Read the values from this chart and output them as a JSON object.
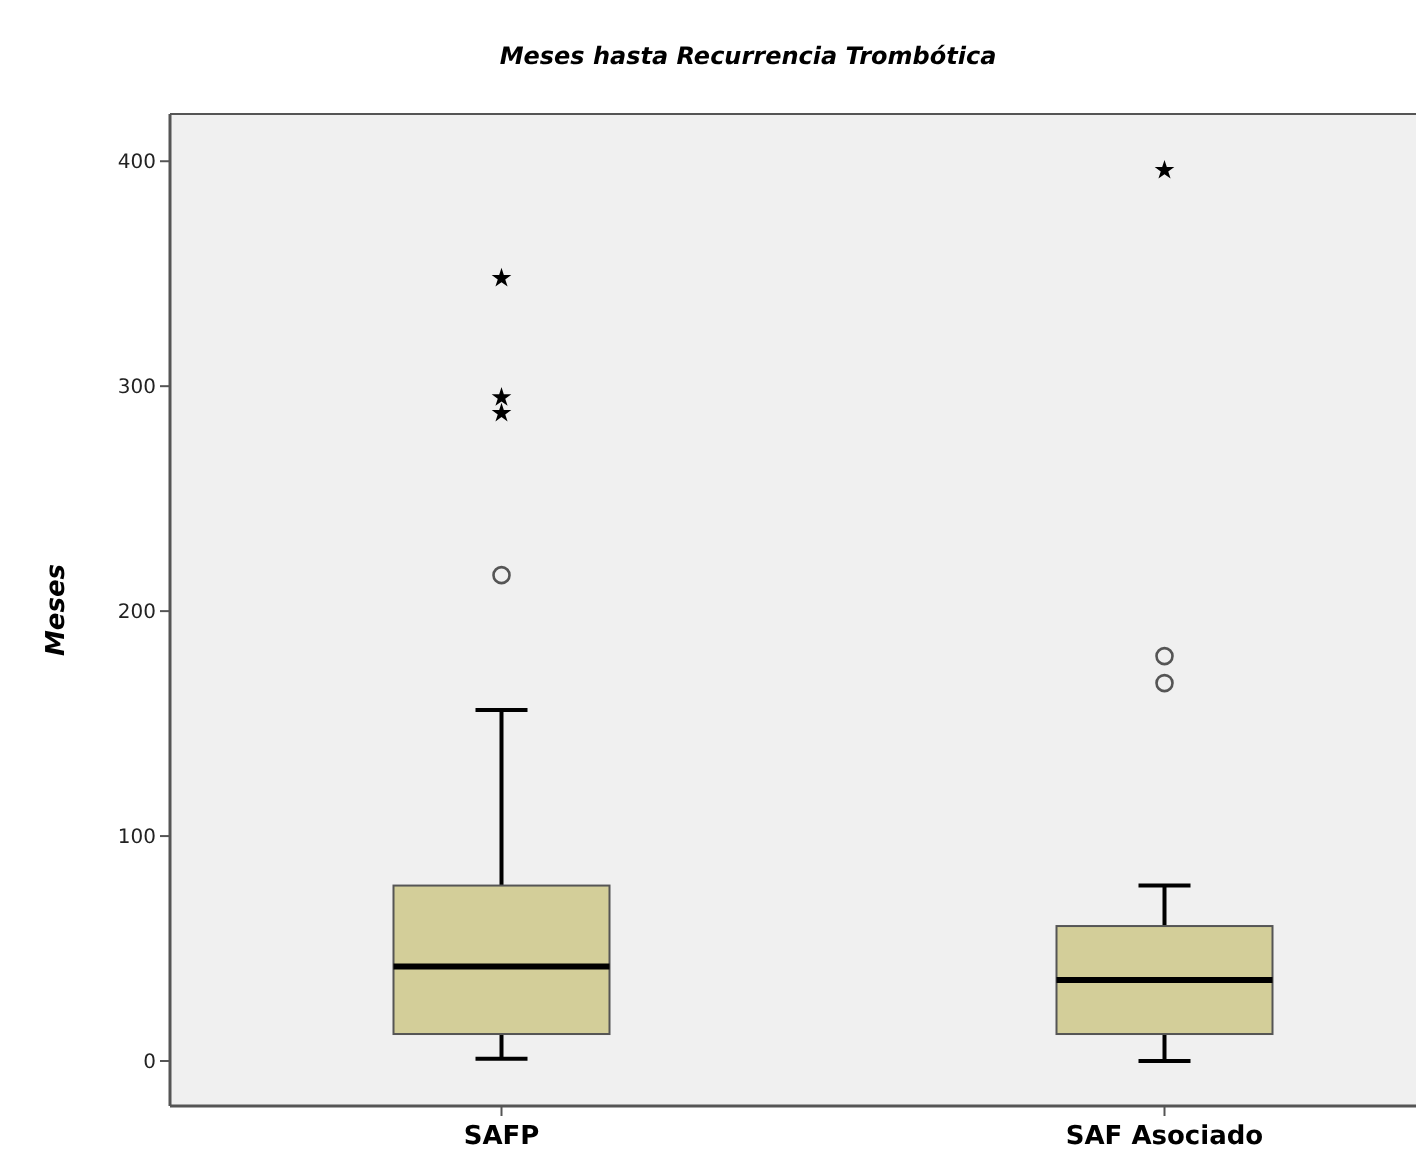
{
  "chart_data": {
    "type": "box",
    "title": "Meses hasta Recurrencia Trombótica",
    "ylabel": "Meses",
    "categories": [
      "SAFP",
      "SAF Asociado"
    ],
    "color": "#d3ce99",
    "ylim": [
      -20,
      421
    ],
    "yticks": [
      0,
      100,
      200,
      300,
      400
    ],
    "grid": false,
    "boxes": [
      {
        "low": 1,
        "q1": 12,
        "median": 42,
        "q3": 78,
        "high": 156,
        "outliers": [
          216,
          288,
          295,
          348
        ]
      },
      {
        "low": 0,
        "q1": 12,
        "median": 36,
        "q3": 60,
        "high": 78,
        "outliers": [
          168,
          180,
          396
        ]
      }
    ]
  }
}
